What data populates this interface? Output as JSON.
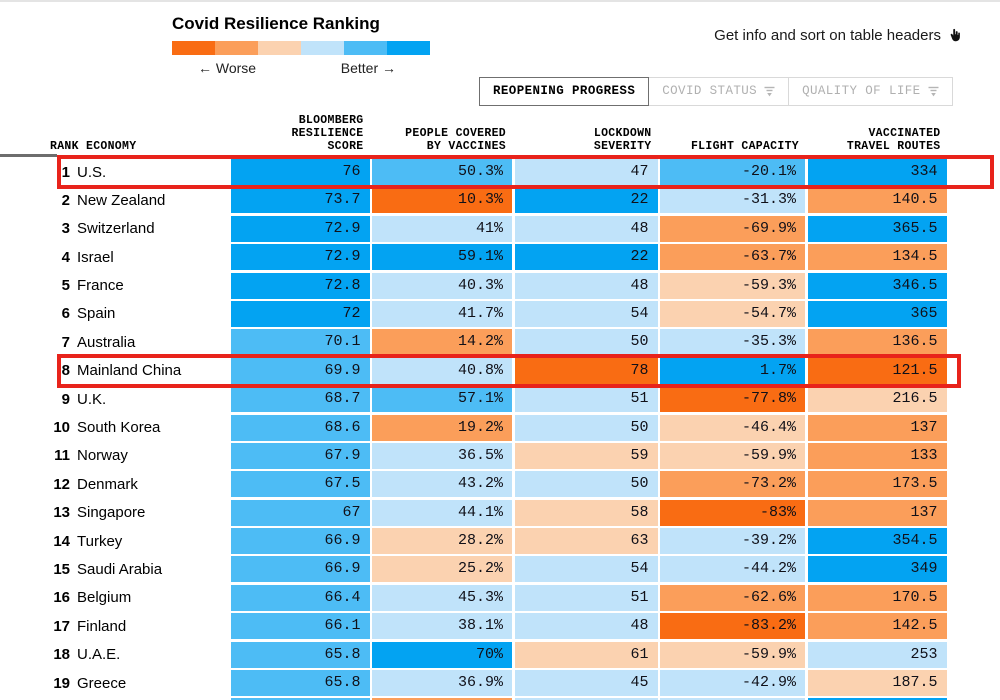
{
  "header": {
    "title": "Covid Resilience Ranking",
    "info_text": "Get info and sort on table headers",
    "legend": {
      "worse_label": "← Worse",
      "better_label": "Better →",
      "colors": [
        "#f96c13",
        "#fb9e5a",
        "#fbd2b0",
        "#c0e3fa",
        "#4dbcf5",
        "#03a3f2"
      ]
    }
  },
  "tabs": [
    {
      "label": "REOPENING PROGRESS",
      "active": true,
      "has_filter_icon": false
    },
    {
      "label": "COVID STATUS",
      "active": false,
      "has_filter_icon": true
    },
    {
      "label": "QUALITY OF LIFE",
      "active": false,
      "has_filter_icon": true
    }
  ],
  "table": {
    "columns": [
      "RANK ECONOMY",
      "BLOOMBERG\nRESILIENCE\nSCORE",
      "PEOPLE COVERED\nBY VACCINES",
      "LOCKDOWN\nSEVERITY",
      "FLIGHT CAPACITY",
      "VACCINATED\nTRAVEL ROUTES"
    ],
    "tone_legend": {
      "o3": "worst",
      "o2": "worse",
      "o1": "slightly-worse",
      "b1": "slightly-better",
      "b2": "better",
      "b3": "best"
    },
    "highlight_color": "#e8231b",
    "rows": [
      {
        "rank": "1",
        "economy": "U.S.",
        "highlight": "wide",
        "score": {
          "value": "76",
          "tone": "b3"
        },
        "vaccines": {
          "value": "50.3%",
          "tone": "b2"
        },
        "lockdown": {
          "value": "47",
          "tone": "b1"
        },
        "flight": {
          "value": "-20.1%",
          "tone": "b2"
        },
        "routes": {
          "value": "334",
          "tone": "b3"
        }
      },
      {
        "rank": "2",
        "economy": "New Zealand",
        "highlight": null,
        "score": {
          "value": "73.7",
          "tone": "b3"
        },
        "vaccines": {
          "value": "10.3%",
          "tone": "o3"
        },
        "lockdown": {
          "value": "22",
          "tone": "b3"
        },
        "flight": {
          "value": "-31.3%",
          "tone": "b1"
        },
        "routes": {
          "value": "140.5",
          "tone": "o2"
        }
      },
      {
        "rank": "3",
        "economy": "Switzerland",
        "highlight": null,
        "score": {
          "value": "72.9",
          "tone": "b3"
        },
        "vaccines": {
          "value": "41%",
          "tone": "b1"
        },
        "lockdown": {
          "value": "48",
          "tone": "b1"
        },
        "flight": {
          "value": "-69.9%",
          "tone": "o2"
        },
        "routes": {
          "value": "365.5",
          "tone": "b3"
        }
      },
      {
        "rank": "4",
        "economy": "Israel",
        "highlight": null,
        "score": {
          "value": "72.9",
          "tone": "b3"
        },
        "vaccines": {
          "value": "59.1%",
          "tone": "b3"
        },
        "lockdown": {
          "value": "22",
          "tone": "b3"
        },
        "flight": {
          "value": "-63.7%",
          "tone": "o2"
        },
        "routes": {
          "value": "134.5",
          "tone": "o2"
        }
      },
      {
        "rank": "5",
        "economy": "France",
        "highlight": null,
        "score": {
          "value": "72.8",
          "tone": "b3"
        },
        "vaccines": {
          "value": "40.3%",
          "tone": "b1"
        },
        "lockdown": {
          "value": "48",
          "tone": "b1"
        },
        "flight": {
          "value": "-59.3%",
          "tone": "o1"
        },
        "routes": {
          "value": "346.5",
          "tone": "b3"
        }
      },
      {
        "rank": "6",
        "economy": "Spain",
        "highlight": null,
        "score": {
          "value": "72",
          "tone": "b3"
        },
        "vaccines": {
          "value": "41.7%",
          "tone": "b1"
        },
        "lockdown": {
          "value": "54",
          "tone": "b1"
        },
        "flight": {
          "value": "-54.7%",
          "tone": "o1"
        },
        "routes": {
          "value": "365",
          "tone": "b3"
        }
      },
      {
        "rank": "7",
        "economy": "Australia",
        "highlight": null,
        "score": {
          "value": "70.1",
          "tone": "b2"
        },
        "vaccines": {
          "value": "14.2%",
          "tone": "o2"
        },
        "lockdown": {
          "value": "50",
          "tone": "b1"
        },
        "flight": {
          "value": "-35.3%",
          "tone": "b1"
        },
        "routes": {
          "value": "136.5",
          "tone": "o2"
        }
      },
      {
        "rank": "8",
        "economy": "Mainland China",
        "highlight": "snug",
        "score": {
          "value": "69.9",
          "tone": "b2"
        },
        "vaccines": {
          "value": "40.8%",
          "tone": "b1"
        },
        "lockdown": {
          "value": "78",
          "tone": "o3"
        },
        "flight": {
          "value": "1.7%",
          "tone": "b3"
        },
        "routes": {
          "value": "121.5",
          "tone": "o3"
        }
      },
      {
        "rank": "9",
        "economy": "U.K.",
        "highlight": null,
        "score": {
          "value": "68.7",
          "tone": "b2"
        },
        "vaccines": {
          "value": "57.1%",
          "tone": "b2"
        },
        "lockdown": {
          "value": "51",
          "tone": "b1"
        },
        "flight": {
          "value": "-77.8%",
          "tone": "o3"
        },
        "routes": {
          "value": "216.5",
          "tone": "o1"
        }
      },
      {
        "rank": "10",
        "economy": "South Korea",
        "highlight": null,
        "score": {
          "value": "68.6",
          "tone": "b2"
        },
        "vaccines": {
          "value": "19.2%",
          "tone": "o2"
        },
        "lockdown": {
          "value": "50",
          "tone": "b1"
        },
        "flight": {
          "value": "-46.4%",
          "tone": "o1"
        },
        "routes": {
          "value": "137",
          "tone": "o2"
        }
      },
      {
        "rank": "11",
        "economy": "Norway",
        "highlight": null,
        "score": {
          "value": "67.9",
          "tone": "b2"
        },
        "vaccines": {
          "value": "36.5%",
          "tone": "b1"
        },
        "lockdown": {
          "value": "59",
          "tone": "o1"
        },
        "flight": {
          "value": "-59.9%",
          "tone": "o1"
        },
        "routes": {
          "value": "133",
          "tone": "o2"
        }
      },
      {
        "rank": "12",
        "economy": "Denmark",
        "highlight": null,
        "score": {
          "value": "67.5",
          "tone": "b2"
        },
        "vaccines": {
          "value": "43.2%",
          "tone": "b1"
        },
        "lockdown": {
          "value": "50",
          "tone": "b1"
        },
        "flight": {
          "value": "-73.2%",
          "tone": "o2"
        },
        "routes": {
          "value": "173.5",
          "tone": "o2"
        }
      },
      {
        "rank": "13",
        "economy": "Singapore",
        "highlight": null,
        "score": {
          "value": "67",
          "tone": "b2"
        },
        "vaccines": {
          "value": "44.1%",
          "tone": "b1"
        },
        "lockdown": {
          "value": "58",
          "tone": "o1"
        },
        "flight": {
          "value": "-83%",
          "tone": "o3"
        },
        "routes": {
          "value": "137",
          "tone": "o2"
        }
      },
      {
        "rank": "14",
        "economy": "Turkey",
        "highlight": null,
        "score": {
          "value": "66.9",
          "tone": "b2"
        },
        "vaccines": {
          "value": "28.2%",
          "tone": "o1"
        },
        "lockdown": {
          "value": "63",
          "tone": "o1"
        },
        "flight": {
          "value": "-39.2%",
          "tone": "b1"
        },
        "routes": {
          "value": "354.5",
          "tone": "b3"
        }
      },
      {
        "rank": "15",
        "economy": "Saudi Arabia",
        "highlight": null,
        "score": {
          "value": "66.9",
          "tone": "b2"
        },
        "vaccines": {
          "value": "25.2%",
          "tone": "o1"
        },
        "lockdown": {
          "value": "54",
          "tone": "b1"
        },
        "flight": {
          "value": "-44.2%",
          "tone": "b1"
        },
        "routes": {
          "value": "349",
          "tone": "b3"
        }
      },
      {
        "rank": "16",
        "economy": "Belgium",
        "highlight": null,
        "score": {
          "value": "66.4",
          "tone": "b2"
        },
        "vaccines": {
          "value": "45.3%",
          "tone": "b1"
        },
        "lockdown": {
          "value": "51",
          "tone": "b1"
        },
        "flight": {
          "value": "-62.6%",
          "tone": "o2"
        },
        "routes": {
          "value": "170.5",
          "tone": "o2"
        }
      },
      {
        "rank": "17",
        "economy": "Finland",
        "highlight": null,
        "score": {
          "value": "66.1",
          "tone": "b2"
        },
        "vaccines": {
          "value": "38.1%",
          "tone": "b1"
        },
        "lockdown": {
          "value": "48",
          "tone": "b1"
        },
        "flight": {
          "value": "-83.2%",
          "tone": "o3"
        },
        "routes": {
          "value": "142.5",
          "tone": "o2"
        }
      },
      {
        "rank": "18",
        "economy": "U.A.E.",
        "highlight": null,
        "score": {
          "value": "65.8",
          "tone": "b2"
        },
        "vaccines": {
          "value": "70%",
          "tone": "b3"
        },
        "lockdown": {
          "value": "61",
          "tone": "o1"
        },
        "flight": {
          "value": "-59.9%",
          "tone": "o1"
        },
        "routes": {
          "value": "253",
          "tone": "b1"
        }
      },
      {
        "rank": "19",
        "economy": "Greece",
        "highlight": null,
        "score": {
          "value": "65.8",
          "tone": "b2"
        },
        "vaccines": {
          "value": "36.9%",
          "tone": "b1"
        },
        "lockdown": {
          "value": "45",
          "tone": "b1"
        },
        "flight": {
          "value": "-42.9%",
          "tone": "b1"
        },
        "routes": {
          "value": "187.5",
          "tone": "o1"
        }
      }
    ],
    "partial_row_tones": [
      "b2",
      "o2",
      "b1",
      "b1",
      "b3"
    ]
  }
}
